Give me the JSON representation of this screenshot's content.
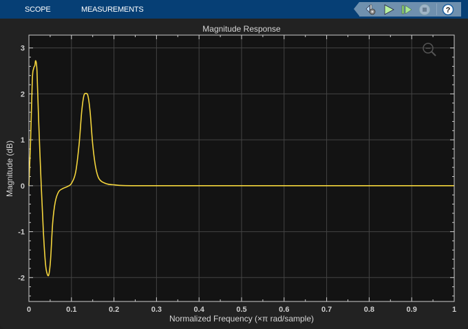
{
  "tabs": [
    {
      "label": "SCOPE"
    },
    {
      "label": "MEASUREMENTS"
    }
  ],
  "toolbar": {
    "buttons": [
      {
        "name": "settings",
        "icon": "settings-gear-icon"
      },
      {
        "name": "run",
        "icon": "play-icon"
      },
      {
        "name": "step-forward",
        "icon": "step-forward-icon"
      },
      {
        "name": "stop",
        "icon": "stop-icon"
      },
      {
        "name": "help",
        "icon": "help-icon",
        "label": "?"
      }
    ]
  },
  "colors": {
    "topbar": "#063f75",
    "toolbar": "#6f90ae",
    "plot_bg": "#131313",
    "trace": "#f5d63d",
    "grid": "#444444"
  },
  "chart_data": {
    "type": "line",
    "title": "Magnitude Response",
    "xlabel": "Normalized Frequency (×π rad/sample)",
    "ylabel": "Magnitude (dB)",
    "xlim": [
      0,
      1
    ],
    "ylim": [
      -2.52,
      3.28
    ],
    "xticks": [
      0,
      0.1,
      0.2,
      0.3,
      0.4,
      0.5,
      0.6,
      0.7,
      0.8,
      0.9,
      1
    ],
    "xtick_labels": [
      "0",
      "0.1",
      "0.2",
      "0.3",
      "0.4",
      "0.5",
      "0.6",
      "0.7",
      "0.8",
      "0.9",
      "1"
    ],
    "yticks": [
      -2,
      -1,
      0,
      1,
      2,
      3
    ],
    "ytick_labels": [
      "-2",
      "-1",
      "0",
      "1",
      "2",
      "3"
    ],
    "grid": true,
    "series": [
      {
        "color": "#f5d63d",
        "points": [
          [
            0,
            0
          ],
          [
            0.004,
            1.0
          ],
          [
            0.008,
            2.3
          ],
          [
            0.011,
            2.55
          ],
          [
            0.014,
            2.62
          ],
          [
            0.016,
            2.72
          ],
          [
            0.019,
            2.5
          ],
          [
            0.023,
            1.4
          ],
          [
            0.029,
            0
          ],
          [
            0.034,
            -1.0
          ],
          [
            0.039,
            -1.7
          ],
          [
            0.043,
            -1.92
          ],
          [
            0.047,
            -1.93
          ],
          [
            0.051,
            -1.6
          ],
          [
            0.056,
            -0.8
          ],
          [
            0.062,
            -0.35
          ],
          [
            0.07,
            -0.13
          ],
          [
            0.08,
            -0.06
          ],
          [
            0.09,
            -0.02
          ],
          [
            0.1,
            0.05
          ],
          [
            0.11,
            0.3
          ],
          [
            0.118,
            0.9
          ],
          [
            0.124,
            1.6
          ],
          [
            0.129,
            1.95
          ],
          [
            0.134,
            2.01
          ],
          [
            0.139,
            1.95
          ],
          [
            0.144,
            1.6
          ],
          [
            0.15,
            0.9
          ],
          [
            0.157,
            0.4
          ],
          [
            0.165,
            0.15
          ],
          [
            0.18,
            0.05
          ],
          [
            0.2,
            0.02
          ],
          [
            0.25,
            0
          ],
          [
            0.5,
            0
          ],
          [
            1,
            0
          ]
        ]
      }
    ]
  },
  "zoom_indicator": {
    "icon": "zoom-out-icon"
  }
}
